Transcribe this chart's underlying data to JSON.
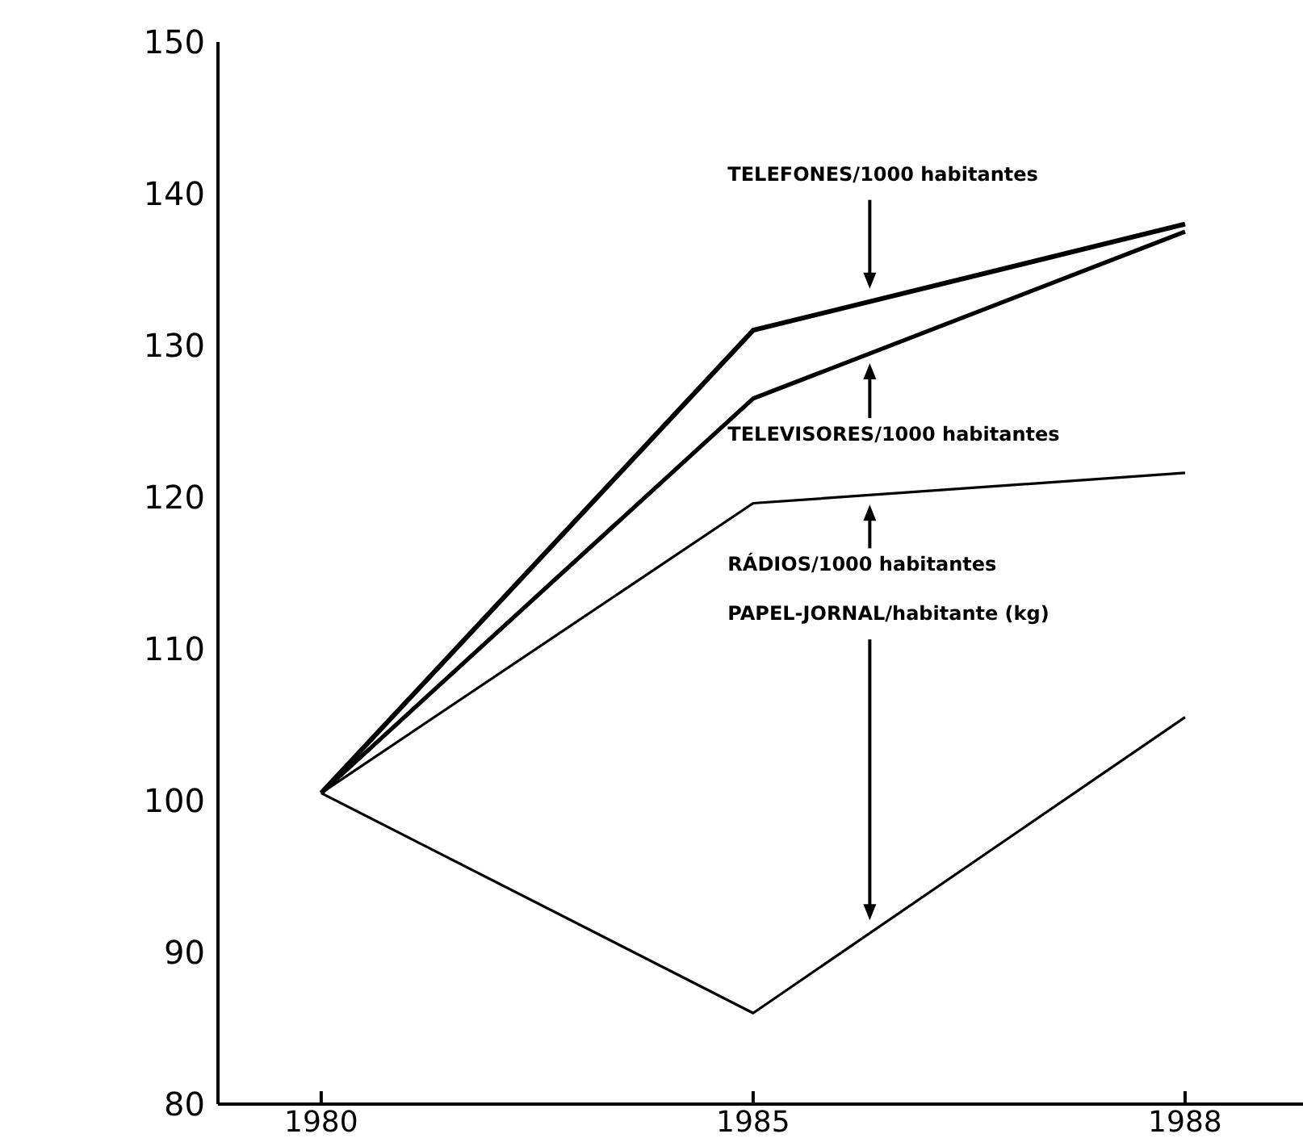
{
  "chart_data": {
    "type": "line",
    "categories": [
      "1980",
      "1985",
      "1988"
    ],
    "series": [
      {
        "color": "#000000",
        "values": [
          100.5,
          131,
          138
        ]
      },
      {
        "color": "#000000",
        "values": [
          100.5,
          126.5,
          137.5
        ]
      },
      {
        "color": "#000000",
        "values": [
          100.5,
          119.6,
          121.6
        ]
      },
      {
        "color": "#000000",
        "values": [
          100.5,
          86,
          105.5
        ]
      }
    ],
    "annotations": [
      "TELEFONES/1000 habitantes",
      "TELEVISORES/1000 habitantes",
      "RÁDIOS/1000 habitantes",
      "PAPEL-JORNAL/habitante (kg)"
    ],
    "ylim": [
      80,
      150
    ],
    "yticks": [
      80,
      90,
      100,
      110,
      120,
      130,
      140,
      150
    ],
    "marker": "none",
    "line_style": "solid"
  }
}
